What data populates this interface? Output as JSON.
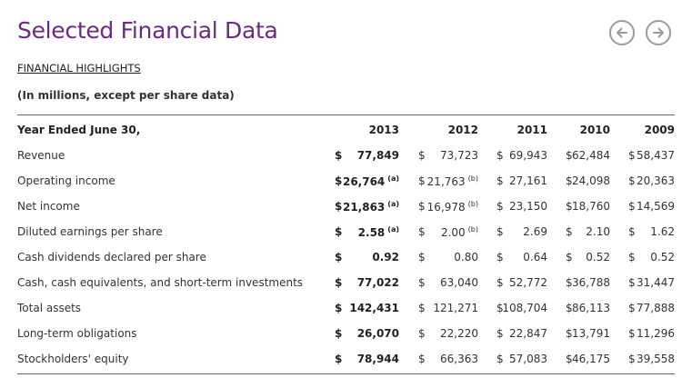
{
  "title": "Selected Financial Data",
  "nav": {
    "prev_icon": "arrow-left-icon",
    "next_icon": "arrow-right-icon"
  },
  "section_link": "FINANCIAL HIGHLIGHTS",
  "note": "(In millions, except per share data)",
  "header": {
    "label": "Year Ended June 30,",
    "years": [
      "2013",
      "2012",
      "2011",
      "2010",
      "2009"
    ]
  },
  "rows": [
    {
      "label": "Revenue",
      "cells": [
        {
          "dollar": "$",
          "value": "77,849",
          "note": ""
        },
        {
          "dollar": "$",
          "value": "73,723",
          "note": ""
        },
        {
          "dollar": "$",
          "value": "69,943",
          "note": ""
        },
        {
          "dollar": "$",
          "value": "62,484",
          "note": ""
        },
        {
          "dollar": "$",
          "value": "58,437",
          "note": ""
        }
      ]
    },
    {
      "label": "Operating income",
      "cells": [
        {
          "dollar": "$",
          "value": "26,764",
          "note": "(a)"
        },
        {
          "dollar": "$",
          "value": "21,763",
          "note": "(b)"
        },
        {
          "dollar": "$",
          "value": "27,161",
          "note": ""
        },
        {
          "dollar": "$",
          "value": "24,098",
          "note": ""
        },
        {
          "dollar": "$",
          "value": "20,363",
          "note": ""
        }
      ]
    },
    {
      "label": "Net income",
      "cells": [
        {
          "dollar": "$",
          "value": "21,863",
          "note": "(a)"
        },
        {
          "dollar": "$",
          "value": "16,978",
          "note": "(b)"
        },
        {
          "dollar": "$",
          "value": "23,150",
          "note": ""
        },
        {
          "dollar": "$",
          "value": "18,760",
          "note": ""
        },
        {
          "dollar": "$",
          "value": "14,569",
          "note": ""
        }
      ]
    },
    {
      "label": "Diluted earnings per share",
      "cells": [
        {
          "dollar": "$",
          "value": "2.58",
          "note": "(a)"
        },
        {
          "dollar": "$",
          "value": "2.00",
          "note": "(b)"
        },
        {
          "dollar": "$",
          "value": "2.69",
          "note": ""
        },
        {
          "dollar": "$",
          "value": "2.10",
          "note": ""
        },
        {
          "dollar": "$",
          "value": "1.62",
          "note": ""
        }
      ]
    },
    {
      "label": "Cash dividends declared per share",
      "cells": [
        {
          "dollar": "$",
          "value": "0.92",
          "note": ""
        },
        {
          "dollar": "$",
          "value": "0.80",
          "note": ""
        },
        {
          "dollar": "$",
          "value": "0.64",
          "note": ""
        },
        {
          "dollar": "$",
          "value": "0.52",
          "note": ""
        },
        {
          "dollar": "$",
          "value": "0.52",
          "note": ""
        }
      ]
    },
    {
      "label": "Cash, cash equivalents, and short-term investments",
      "cells": [
        {
          "dollar": "$",
          "value": "77,022",
          "note": ""
        },
        {
          "dollar": "$",
          "value": "63,040",
          "note": ""
        },
        {
          "dollar": "$",
          "value": "52,772",
          "note": ""
        },
        {
          "dollar": "$",
          "value": "36,788",
          "note": ""
        },
        {
          "dollar": "$",
          "value": "31,447",
          "note": ""
        }
      ]
    },
    {
      "label": "Total assets",
      "cells": [
        {
          "dollar": "$",
          "value": "142,431",
          "note": ""
        },
        {
          "dollar": "$",
          "value": "121,271",
          "note": ""
        },
        {
          "dollar": "$",
          "value": "108,704",
          "note": ""
        },
        {
          "dollar": "$",
          "value": "86,113",
          "note": ""
        },
        {
          "dollar": "$",
          "value": "77,888",
          "note": ""
        }
      ]
    },
    {
      "label": "Long-term obligations",
      "cells": [
        {
          "dollar": "$",
          "value": "26,070",
          "note": ""
        },
        {
          "dollar": "$",
          "value": "22,220",
          "note": ""
        },
        {
          "dollar": "$",
          "value": "22,847",
          "note": ""
        },
        {
          "dollar": "$",
          "value": "13,791",
          "note": ""
        },
        {
          "dollar": "$",
          "value": "11,296",
          "note": ""
        }
      ]
    },
    {
      "label": "Stockholders' equity",
      "cells": [
        {
          "dollar": "$",
          "value": "78,944",
          "note": ""
        },
        {
          "dollar": "$",
          "value": "66,363",
          "note": ""
        },
        {
          "dollar": "$",
          "value": "57,083",
          "note": ""
        },
        {
          "dollar": "$",
          "value": "46,175",
          "note": ""
        },
        {
          "dollar": "$",
          "value": "39,558",
          "note": ""
        }
      ]
    }
  ],
  "colors": {
    "title": "#6b2b82",
    "rule": "#666666",
    "nav_ring": "#9c9c9c"
  }
}
